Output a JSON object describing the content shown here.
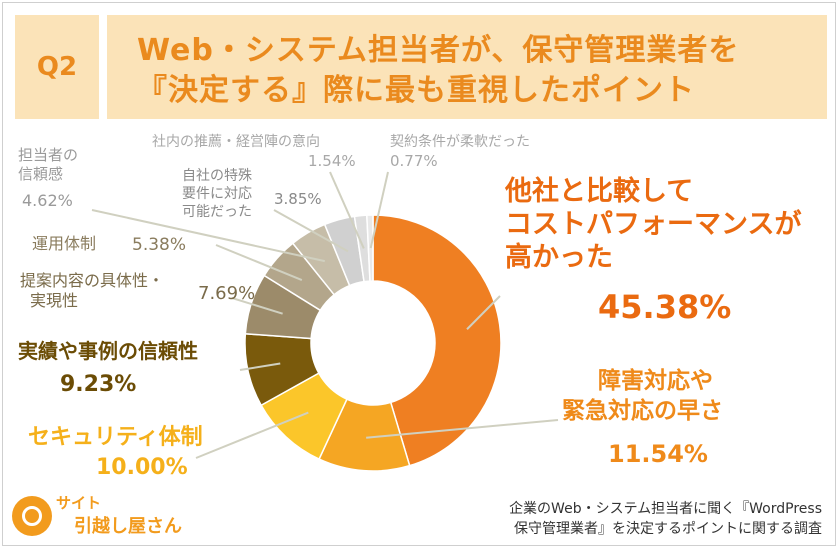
{
  "badge": "Q2",
  "title": {
    "line1": "Web・システム担当者が、保守管理業者を",
    "line2": "『決定する』際に最も重視したポイント"
  },
  "colors": {
    "accent": "#ea8a1e",
    "title_bg": "#fbe3b8"
  },
  "chart_data": {
    "type": "pie",
    "unit": "%",
    "categories": [
      "他社と比較してコストパフォーマンスが高かった",
      "障害対応や緊急対応の早さ",
      "セキュリティ体制",
      "実績や事例の信頼性",
      "提案内容の具体性・実現性",
      "運用体制",
      "担当者の信頼感",
      "自社の特殊要件に対応可能だった",
      "社内の推薦・経営陣の意向",
      "契約条件が柔軟だった"
    ],
    "values": [
      45.38,
      11.54,
      10.0,
      9.23,
      7.69,
      5.38,
      4.62,
      3.85,
      1.54,
      0.77
    ],
    "value_labels": [
      "45.38%",
      "11.54%",
      "10.00%",
      "9.23%",
      "7.69%",
      "5.38%",
      "4.62%",
      "3.85%",
      "1.54%",
      "0.77%"
    ],
    "colors": [
      "#ef7f22",
      "#f5a623",
      "#fbc62a",
      "#7a5a0c",
      "#9c8b6a",
      "#b3a68b",
      "#c6bda8",
      "#d0d0d0",
      "#dedede",
      "#e9e9e9"
    ],
    "legend": "none"
  },
  "labels": {
    "cost": {
      "lines": [
        "他社と比較して",
        "コストパフォーマンスが",
        "高かった"
      ],
      "value": "45.38%"
    },
    "incident": {
      "lines": [
        "障害対応や",
        "緊急対応の早さ"
      ],
      "value": "11.54%"
    },
    "security": {
      "lines": [
        "セキュリティ体制"
      ],
      "value": "10.00%"
    },
    "track": {
      "lines": [
        "実績や事例の信頼性"
      ],
      "value": "9.23%"
    },
    "proposal": {
      "lines": [
        "提案内容の具体性・",
        "実現性"
      ],
      "value": "7.69%"
    },
    "operation": {
      "lines": [
        "運用体制"
      ],
      "value": "5.38%"
    },
    "person": {
      "lines": [
        "担当者の",
        "信頼感"
      ],
      "value": "4.62%"
    },
    "special": {
      "lines": [
        "自社の特殊",
        "要件に対応",
        "可能だった"
      ],
      "value": "3.85%"
    },
    "internal": {
      "lines": [
        "社内の推薦・経営陣の意向"
      ],
      "value": "1.54%"
    },
    "contract": {
      "lines": [
        "契約条件が柔軟だった"
      ],
      "value": "0.77%"
    }
  },
  "caption": {
    "line1": "企業のWeb・システム担当者に聞く『WordPress",
    "line2": "保守管理業者』を決定するポイントに関する調査"
  },
  "logo": {
    "line1": "サイト",
    "line2": "引越し屋さん"
  }
}
